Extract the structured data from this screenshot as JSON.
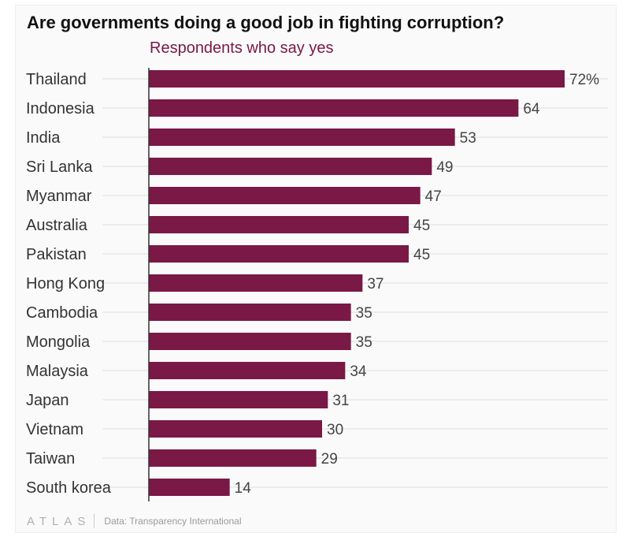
{
  "chart_data": {
    "type": "bar",
    "orientation": "horizontal",
    "title": "Are governments doing a good job in fighting corruption?",
    "subtitle": "Respondents who say yes",
    "categories": [
      "Thailand",
      "Indonesia",
      "India",
      "Sri Lanka",
      "Myanmar",
      "Australia",
      "Pakistan",
      "Hong Kong",
      "Cambodia",
      "Mongolia",
      "Malaysia",
      "Japan",
      "Vietnam",
      "Taiwan",
      "South korea"
    ],
    "values": [
      72,
      64,
      53,
      49,
      47,
      45,
      45,
      37,
      35,
      35,
      34,
      31,
      30,
      29,
      14
    ],
    "value_labels": [
      "72%",
      "64",
      "53",
      "49",
      "47",
      "45",
      "45",
      "37",
      "35",
      "35",
      "34",
      "31",
      "30",
      "29",
      "14"
    ],
    "xlim": [
      0,
      72
    ],
    "grid": true,
    "colors": {
      "bar": "#7a1846",
      "grid": "#dddddd",
      "axis": "#333333"
    }
  },
  "footer": {
    "brand": "ATLAS",
    "source": "Data: Transparency International"
  }
}
